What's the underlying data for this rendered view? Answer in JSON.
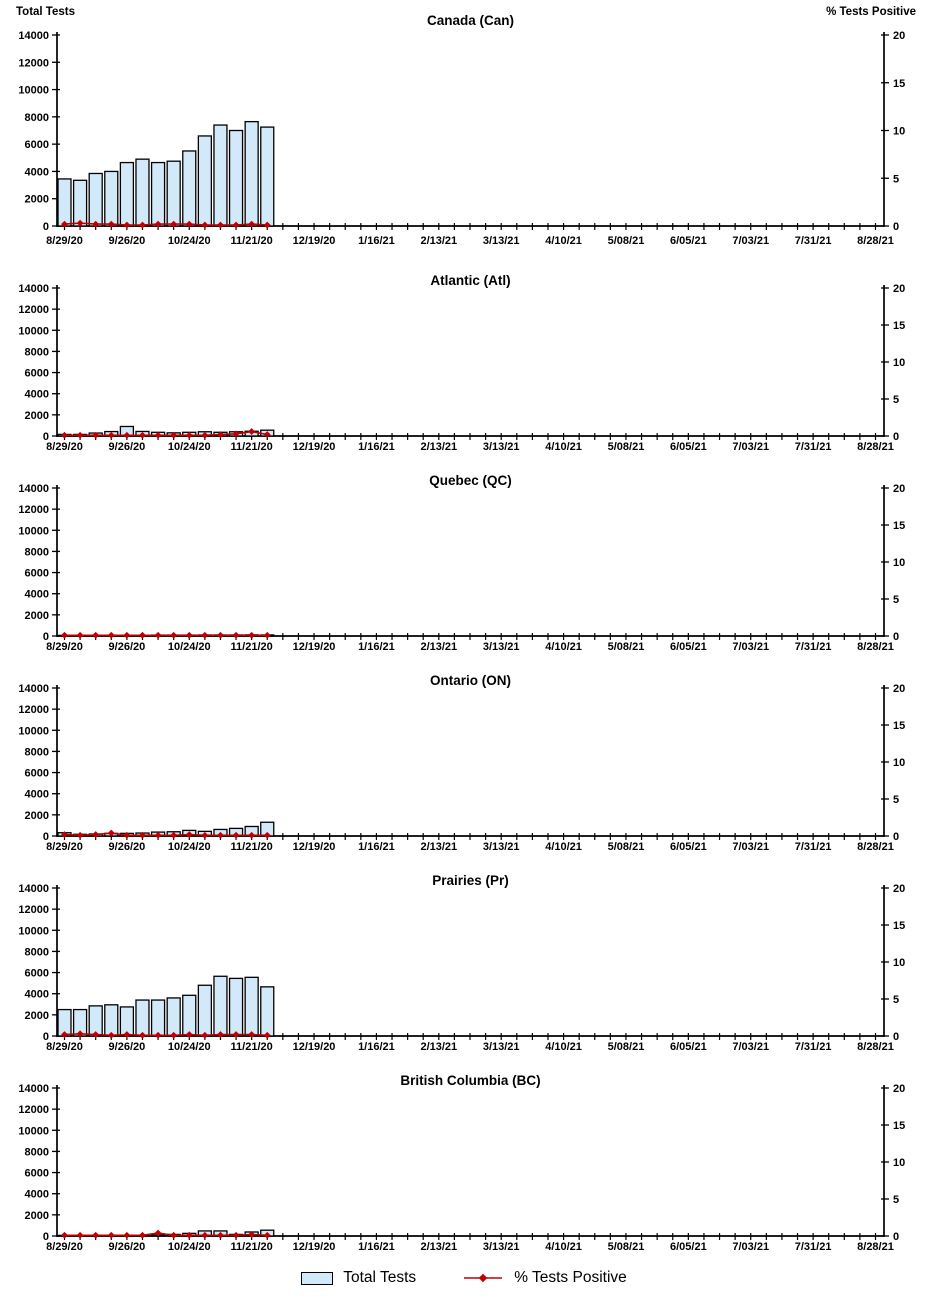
{
  "page": {
    "left_axis_title": "Total Tests",
    "right_axis_title": "% Tests Positive"
  },
  "axes": {
    "left_title": "Total Tests",
    "right_title": "% Tests Positive",
    "left_ticks": [
      0,
      2000,
      4000,
      6000,
      8000,
      10000,
      12000,
      14000
    ],
    "left_max": 14000,
    "right_ticks": [
      0,
      5,
      10,
      15,
      20
    ],
    "right_max": 20,
    "weeks_total": 53,
    "x_tick_label_every": 4,
    "x_tick_labels": [
      "8/29/20",
      "9/26/20",
      "10/24/20",
      "11/21/20",
      "12/19/20",
      "1/16/21",
      "2/13/21",
      "3/13/21",
      "4/10/21",
      "5/08/21",
      "6/05/21",
      "7/03/21",
      "7/31/21",
      "8/28/21"
    ]
  },
  "legend": {
    "total_tests_label": "Total Tests",
    "pct_positive_label": "% Tests Positive"
  },
  "colors": {
    "bar_fill": "#D2E9FA",
    "bar_stroke": "#000000",
    "line_color": "#C00000",
    "axis_color": "#000000",
    "text_color": "#000000"
  },
  "chart_data": [
    {
      "type": "bar+line",
      "title": "Canada (Can)",
      "categories": [
        "8/29/20",
        "9/05/20",
        "9/12/20",
        "9/19/20",
        "9/26/20",
        "10/03/20",
        "10/10/20",
        "10/17/20",
        "10/24/20",
        "10/31/20",
        "11/07/20",
        "11/14/20",
        "11/21/20",
        "11/28/20"
      ],
      "series": [
        {
          "name": "Total Tests",
          "axis": "left",
          "values": [
            3450,
            3350,
            3850,
            4000,
            4650,
            4900,
            4650,
            4750,
            5500,
            6600,
            7400,
            7000,
            7650,
            7250
          ]
        },
        {
          "name": "% Tests Positive",
          "axis": "right",
          "values": [
            0.2,
            0.3,
            0.2,
            0.2,
            0.1,
            0.1,
            0.2,
            0.2,
            0.2,
            0.1,
            0.1,
            0.1,
            0.2,
            0.1
          ]
        }
      ],
      "ylim": [
        0,
        14000
      ],
      "y2lim": [
        0,
        20
      ]
    },
    {
      "type": "bar+line",
      "title": "Atlantic (Atl)",
      "categories": [
        "8/29/20",
        "9/05/20",
        "9/12/20",
        "9/19/20",
        "9/26/20",
        "10/03/20",
        "10/10/20",
        "10/17/20",
        "10/24/20",
        "10/31/20",
        "11/07/20",
        "11/14/20",
        "11/21/20",
        "11/28/20"
      ],
      "series": [
        {
          "name": "Total Tests",
          "axis": "left",
          "values": [
            150,
            150,
            280,
            420,
            900,
            430,
            350,
            300,
            350,
            400,
            350,
            400,
            450,
            550
          ]
        },
        {
          "name": "% Tests Positive",
          "axis": "right",
          "values": [
            0.1,
            0.1,
            0.1,
            0.1,
            0.1,
            0.1,
            0.1,
            0.1,
            0.1,
            0.1,
            0.2,
            0.3,
            0.6,
            0.2
          ]
        }
      ],
      "ylim": [
        0,
        14000
      ],
      "y2lim": [
        0,
        20
      ]
    },
    {
      "type": "bar+line",
      "title": "Quebec (QC)",
      "categories": [
        "8/29/20",
        "9/05/20",
        "9/12/20",
        "9/19/20",
        "9/26/20",
        "10/03/20",
        "10/10/20",
        "10/17/20",
        "10/24/20",
        "10/31/20",
        "11/07/20",
        "11/14/20",
        "11/21/20",
        "11/28/20"
      ],
      "series": [
        {
          "name": "Total Tests",
          "axis": "left",
          "values": [
            60,
            70,
            70,
            80,
            80,
            80,
            90,
            90,
            90,
            100,
            100,
            100,
            110,
            100
          ]
        },
        {
          "name": "% Tests Positive",
          "axis": "right",
          "values": [
            0.1,
            0.1,
            0.1,
            0.1,
            0.1,
            0.1,
            0.1,
            0.1,
            0.1,
            0.1,
            0.1,
            0.1,
            0.1,
            0.1
          ]
        }
      ],
      "ylim": [
        0,
        14000
      ],
      "y2lim": [
        0,
        20
      ]
    },
    {
      "type": "bar+line",
      "title": "Ontario (ON)",
      "categories": [
        "8/29/20",
        "9/05/20",
        "9/12/20",
        "9/19/20",
        "9/26/20",
        "10/03/20",
        "10/10/20",
        "10/17/20",
        "10/24/20",
        "10/31/20",
        "11/07/20",
        "11/14/20",
        "11/21/20",
        "11/28/20"
      ],
      "series": [
        {
          "name": "Total Tests",
          "axis": "left",
          "values": [
            310,
            160,
            190,
            250,
            250,
            280,
            370,
            400,
            530,
            440,
            620,
            720,
            900,
            1300
          ]
        },
        {
          "name": "% Tests Positive",
          "axis": "right",
          "values": [
            0.2,
            0.1,
            0.2,
            0.4,
            0.1,
            0.1,
            0.1,
            0.1,
            0.2,
            0.1,
            0.1,
            0.1,
            0.1,
            0.1
          ]
        }
      ],
      "ylim": [
        0,
        14000
      ],
      "y2lim": [
        0,
        20
      ]
    },
    {
      "type": "bar+line",
      "title": "Prairies (Pr)",
      "categories": [
        "8/29/20",
        "9/05/20",
        "9/12/20",
        "9/19/20",
        "9/26/20",
        "10/03/20",
        "10/10/20",
        "10/17/20",
        "10/24/20",
        "10/31/20",
        "11/07/20",
        "11/14/20",
        "11/21/20",
        "11/28/20"
      ],
      "series": [
        {
          "name": "Total Tests",
          "axis": "left",
          "values": [
            2500,
            2500,
            2850,
            2950,
            2750,
            3400,
            3400,
            3600,
            3850,
            4800,
            5650,
            5450,
            5550,
            4650
          ]
        },
        {
          "name": "% Tests Positive",
          "axis": "right",
          "values": [
            0.2,
            0.3,
            0.2,
            0.1,
            0.2,
            0.1,
            0.1,
            0.1,
            0.2,
            0.1,
            0.2,
            0.2,
            0.2,
            0.1
          ]
        }
      ],
      "ylim": [
        0,
        14000
      ],
      "y2lim": [
        0,
        20
      ]
    },
    {
      "type": "bar+line",
      "title": "British Columbia (BC)",
      "categories": [
        "8/29/20",
        "9/05/20",
        "9/12/20",
        "9/19/20",
        "9/26/20",
        "10/03/20",
        "10/10/20",
        "10/17/20",
        "10/24/20",
        "10/31/20",
        "11/07/20",
        "11/14/20",
        "11/21/20",
        "11/28/20"
      ],
      "series": [
        {
          "name": "Total Tests",
          "axis": "left",
          "values": [
            60,
            80,
            80,
            80,
            80,
            80,
            100,
            150,
            250,
            480,
            480,
            150,
            380,
            550
          ]
        },
        {
          "name": "% Tests Positive",
          "axis": "right",
          "values": [
            0.1,
            0.1,
            0.1,
            0.1,
            0.1,
            0.1,
            0.4,
            0.1,
            0.1,
            0.1,
            0.1,
            0.1,
            0.2,
            0.1
          ]
        }
      ],
      "ylim": [
        0,
        14000
      ],
      "y2lim": [
        0,
        20
      ]
    }
  ]
}
